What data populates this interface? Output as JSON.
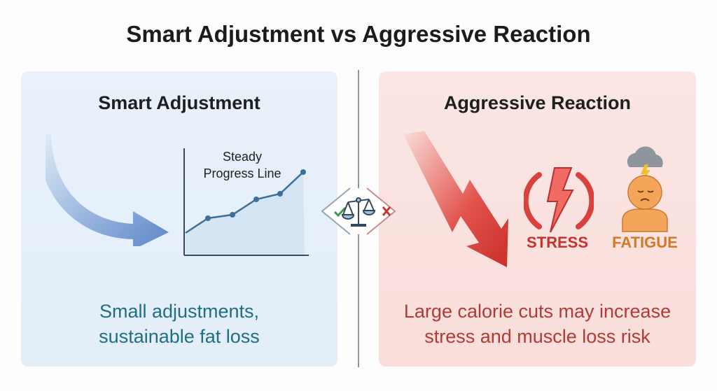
{
  "title": "Smart Adjustment vs Aggressive Reaction",
  "left_panel": {
    "heading": "Smart Adjustment",
    "chart_label_line1": "Steady",
    "chart_label_line2": "Progress Line",
    "caption_line1": "Small adjustments,",
    "caption_line2": "sustainable fat loss",
    "accent_color": "#1e6f85",
    "icons": [
      "curved-arrow-down-right-icon",
      "line-chart-icon"
    ]
  },
  "center": {
    "icons": [
      "check-icon",
      "balance-scale-icon",
      "cross-icon"
    ]
  },
  "right_panel": {
    "heading": "Aggressive Reaction",
    "stress_label": "STRESS",
    "fatigue_label": "FATIGUE",
    "caption_line1": "Large calorie cuts may increase",
    "caption_line2": "stress and muscle loss risk",
    "accent_color": "#b23a34",
    "icons": [
      "zigzag-arrow-down-icon",
      "lightning-stress-icon",
      "tired-person-icon"
    ]
  }
}
